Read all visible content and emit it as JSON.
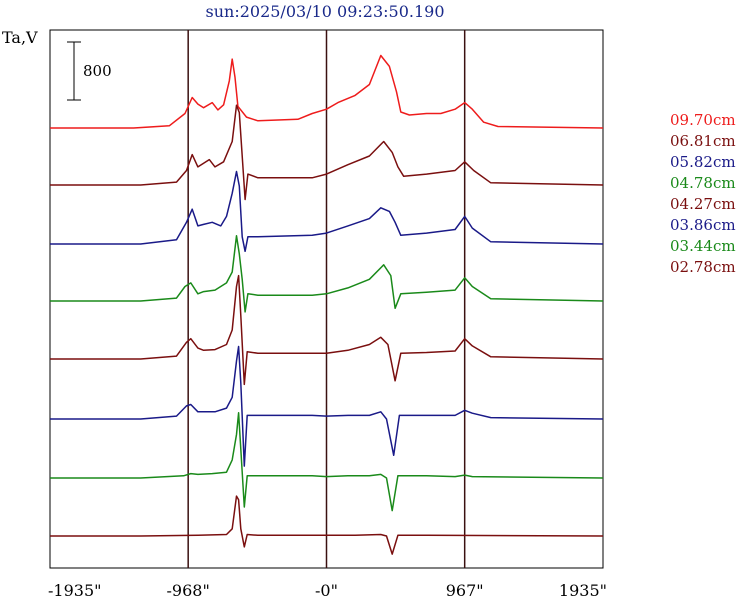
{
  "title": "sun:2025/03/10 09:23:50.190",
  "ylabel": "Ta,V",
  "scale_bar": {
    "label": "800",
    "value": 800
  },
  "chart_data": {
    "type": "line",
    "title": "sun:2025/03/10 09:23:50.190",
    "ylabel": "Ta,V",
    "xlim": [
      -1935,
      1935
    ],
    "x_ticks": [
      {
        "value": -1935,
        "label": "-1935\""
      },
      {
        "value": -968,
        "label": "-968\""
      },
      {
        "value": 0,
        "label": "-0\""
      },
      {
        "value": 967,
        "label": "967\""
      },
      {
        "value": 1935,
        "label": "1935\""
      }
    ],
    "vertical_lines": [
      -968,
      0,
      967
    ],
    "scale_bar_value": 800,
    "series": [
      {
        "name": "09.70cm",
        "color": "#ee1c1c",
        "baseline": 0,
        "points": [
          [
            -1935,
            0
          ],
          [
            -1350,
            0
          ],
          [
            -1100,
            30
          ],
          [
            -990,
            200
          ],
          [
            -940,
            420
          ],
          [
            -900,
            330
          ],
          [
            -860,
            280
          ],
          [
            -800,
            350
          ],
          [
            -760,
            250
          ],
          [
            -720,
            320
          ],
          [
            -680,
            650
          ],
          [
            -660,
            950
          ],
          [
            -640,
            700
          ],
          [
            -620,
            300
          ],
          [
            -560,
            150
          ],
          [
            -480,
            100
          ],
          [
            -200,
            120
          ],
          [
            -100,
            200
          ],
          [
            0,
            260
          ],
          [
            80,
            350
          ],
          [
            200,
            450
          ],
          [
            300,
            600
          ],
          [
            380,
            1000
          ],
          [
            440,
            850
          ],
          [
            490,
            500
          ],
          [
            520,
            220
          ],
          [
            580,
            180
          ],
          [
            700,
            200
          ],
          [
            800,
            200
          ],
          [
            900,
            260
          ],
          [
            967,
            350
          ],
          [
            1020,
            260
          ],
          [
            1100,
            80
          ],
          [
            1200,
            20
          ],
          [
            1935,
            0
          ]
        ]
      },
      {
        "name": "06.81cm",
        "color": "#7a0f0f",
        "baseline": 0,
        "points": [
          [
            -1935,
            0
          ],
          [
            -1300,
            0
          ],
          [
            -1050,
            40
          ],
          [
            -980,
            200
          ],
          [
            -940,
            420
          ],
          [
            -900,
            250
          ],
          [
            -860,
            300
          ],
          [
            -820,
            350
          ],
          [
            -780,
            250
          ],
          [
            -720,
            320
          ],
          [
            -660,
            600
          ],
          [
            -630,
            1100
          ],
          [
            -610,
            1000
          ],
          [
            -590,
            400
          ],
          [
            -570,
            -200
          ],
          [
            -550,
            150
          ],
          [
            -480,
            100
          ],
          [
            -100,
            100
          ],
          [
            0,
            150
          ],
          [
            150,
            280
          ],
          [
            300,
            400
          ],
          [
            400,
            600
          ],
          [
            460,
            450
          ],
          [
            500,
            250
          ],
          [
            540,
            120
          ],
          [
            700,
            150
          ],
          [
            900,
            200
          ],
          [
            967,
            320
          ],
          [
            1030,
            200
          ],
          [
            1150,
            30
          ],
          [
            1935,
            0
          ]
        ]
      },
      {
        "name": "05.82cm",
        "color": "#1a1a88",
        "baseline": 0,
        "points": [
          [
            -1935,
            0
          ],
          [
            -1300,
            0
          ],
          [
            -1050,
            60
          ],
          [
            -980,
            300
          ],
          [
            -940,
            480
          ],
          [
            -900,
            250
          ],
          [
            -860,
            270
          ],
          [
            -800,
            300
          ],
          [
            -740,
            250
          ],
          [
            -700,
            380
          ],
          [
            -660,
            700
          ],
          [
            -630,
            1000
          ],
          [
            -610,
            800
          ],
          [
            -590,
            100
          ],
          [
            -570,
            -100
          ],
          [
            -550,
            100
          ],
          [
            -480,
            100
          ],
          [
            -100,
            120
          ],
          [
            0,
            150
          ],
          [
            150,
            250
          ],
          [
            300,
            350
          ],
          [
            380,
            500
          ],
          [
            440,
            450
          ],
          [
            480,
            300
          ],
          [
            520,
            120
          ],
          [
            700,
            150
          ],
          [
            900,
            200
          ],
          [
            967,
            380
          ],
          [
            1020,
            220
          ],
          [
            1150,
            30
          ],
          [
            1935,
            0
          ]
        ]
      },
      {
        "name": "04.78cm",
        "color": "#1a8a1a",
        "baseline": 0,
        "points": [
          [
            -1935,
            0
          ],
          [
            -1300,
            0
          ],
          [
            -1050,
            40
          ],
          [
            -990,
            200
          ],
          [
            -950,
            250
          ],
          [
            -900,
            100
          ],
          [
            -860,
            130
          ],
          [
            -780,
            150
          ],
          [
            -700,
            250
          ],
          [
            -660,
            400
          ],
          [
            -630,
            900
          ],
          [
            -610,
            650
          ],
          [
            -590,
            300
          ],
          [
            -570,
            -150
          ],
          [
            -550,
            100
          ],
          [
            -480,
            80
          ],
          [
            -100,
            80
          ],
          [
            0,
            100
          ],
          [
            150,
            180
          ],
          [
            300,
            300
          ],
          [
            400,
            500
          ],
          [
            450,
            350
          ],
          [
            480,
            -100
          ],
          [
            520,
            100
          ],
          [
            700,
            120
          ],
          [
            900,
            150
          ],
          [
            967,
            320
          ],
          [
            1020,
            200
          ],
          [
            1150,
            30
          ],
          [
            1935,
            0
          ]
        ]
      },
      {
        "name": "04.27cm",
        "color": "#7a0f0f",
        "baseline": 0,
        "points": [
          [
            -1935,
            0
          ],
          [
            -1300,
            0
          ],
          [
            -1050,
            40
          ],
          [
            -980,
            230
          ],
          [
            -950,
            280
          ],
          [
            -900,
            150
          ],
          [
            -860,
            120
          ],
          [
            -780,
            130
          ],
          [
            -700,
            200
          ],
          [
            -660,
            400
          ],
          [
            -630,
            1000
          ],
          [
            -615,
            1150
          ],
          [
            -600,
            600
          ],
          [
            -575,
            -350
          ],
          [
            -555,
            100
          ],
          [
            -480,
            80
          ],
          [
            -100,
            80
          ],
          [
            0,
            80
          ],
          [
            150,
            120
          ],
          [
            300,
            200
          ],
          [
            380,
            300
          ],
          [
            430,
            200
          ],
          [
            480,
            -300
          ],
          [
            520,
            80
          ],
          [
            700,
            90
          ],
          [
            900,
            110
          ],
          [
            967,
            280
          ],
          [
            1020,
            180
          ],
          [
            1150,
            30
          ],
          [
            1935,
            0
          ]
        ]
      },
      {
        "name": "03.86cm",
        "color": "#1a1a88",
        "baseline": 0,
        "points": [
          [
            -1935,
            0
          ],
          [
            -1300,
            0
          ],
          [
            -1050,
            40
          ],
          [
            -980,
            180
          ],
          [
            -950,
            200
          ],
          [
            -900,
            100
          ],
          [
            -860,
            100
          ],
          [
            -780,
            100
          ],
          [
            -700,
            150
          ],
          [
            -660,
            300
          ],
          [
            -630,
            800
          ],
          [
            -615,
            1000
          ],
          [
            -600,
            500
          ],
          [
            -575,
            -650
          ],
          [
            -555,
            50
          ],
          [
            -480,
            50
          ],
          [
            -100,
            50
          ],
          [
            0,
            40
          ],
          [
            150,
            50
          ],
          [
            300,
            50
          ],
          [
            380,
            100
          ],
          [
            420,
            0
          ],
          [
            470,
            -500
          ],
          [
            510,
            50
          ],
          [
            700,
            50
          ],
          [
            900,
            50
          ],
          [
            967,
            120
          ],
          [
            1020,
            80
          ],
          [
            1150,
            20
          ],
          [
            1935,
            0
          ]
        ]
      },
      {
        "name": "03.44cm",
        "color": "#1a8a1a",
        "baseline": 0,
        "points": [
          [
            -1935,
            0
          ],
          [
            -1300,
            0
          ],
          [
            -1000,
            30
          ],
          [
            -950,
            60
          ],
          [
            -900,
            50
          ],
          [
            -800,
            60
          ],
          [
            -700,
            80
          ],
          [
            -660,
            250
          ],
          [
            -630,
            600
          ],
          [
            -615,
            900
          ],
          [
            -600,
            400
          ],
          [
            -575,
            -400
          ],
          [
            -555,
            30
          ],
          [
            -480,
            30
          ],
          [
            -100,
            30
          ],
          [
            0,
            20
          ],
          [
            150,
            30
          ],
          [
            300,
            30
          ],
          [
            380,
            50
          ],
          [
            420,
            0
          ],
          [
            460,
            -450
          ],
          [
            500,
            30
          ],
          [
            700,
            30
          ],
          [
            900,
            20
          ],
          [
            967,
            40
          ],
          [
            1020,
            20
          ],
          [
            1935,
            0
          ]
        ]
      },
      {
        "name": "02.78cm",
        "color": "#7a0f0f",
        "baseline": 0,
        "points": [
          [
            -1935,
            0
          ],
          [
            -1300,
            0
          ],
          [
            -900,
            10
          ],
          [
            -700,
            20
          ],
          [
            -660,
            100
          ],
          [
            -630,
            550
          ],
          [
            -615,
            500
          ],
          [
            -600,
            100
          ],
          [
            -575,
            -150
          ],
          [
            -555,
            20
          ],
          [
            -480,
            10
          ],
          [
            -100,
            10
          ],
          [
            0,
            10
          ],
          [
            200,
            10
          ],
          [
            380,
            20
          ],
          [
            420,
            0
          ],
          [
            460,
            -250
          ],
          [
            500,
            10
          ],
          [
            700,
            10
          ],
          [
            1935,
            0
          ]
        ]
      }
    ]
  }
}
